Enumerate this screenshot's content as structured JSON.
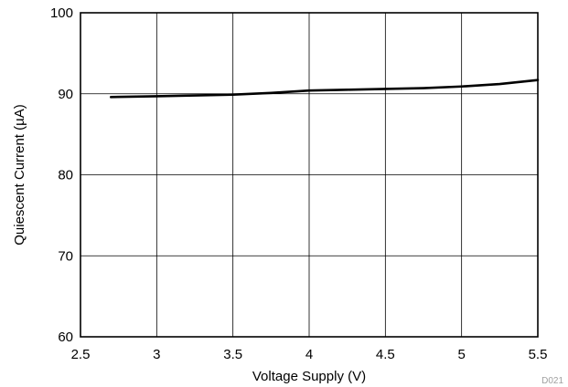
{
  "chart_data": {
    "type": "line",
    "xlabel": "Voltage Supply (V)",
    "ylabel": "Quiescent Current (µA)",
    "xlim": [
      2.5,
      5.5
    ],
    "ylim": [
      60,
      100
    ],
    "x_ticks": [
      2.5,
      3,
      3.5,
      4,
      4.5,
      5,
      5.5
    ],
    "y_ticks": [
      60,
      70,
      80,
      90,
      100
    ],
    "x_tick_labels": [
      "2.5",
      "3",
      "3.5",
      "4",
      "4.5",
      "5",
      "5.5"
    ],
    "y_tick_labels": [
      "60",
      "70",
      "80",
      "90",
      "100"
    ],
    "grid": true,
    "legend": "none",
    "series": [
      {
        "x": [
          2.7,
          3.0,
          3.25,
          3.5,
          3.75,
          4.0,
          4.25,
          4.5,
          4.75,
          5.0,
          5.25,
          5.5
        ],
        "values": [
          89.6,
          89.7,
          89.8,
          89.9,
          90.1,
          90.4,
          90.5,
          90.6,
          90.7,
          90.9,
          91.2,
          91.7
        ]
      }
    ],
    "figure_id": "D021"
  },
  "colors": {
    "line": "#000000",
    "grid": "#000000",
    "background": "#ffffff",
    "figure_id": "#a0a0a0"
  }
}
